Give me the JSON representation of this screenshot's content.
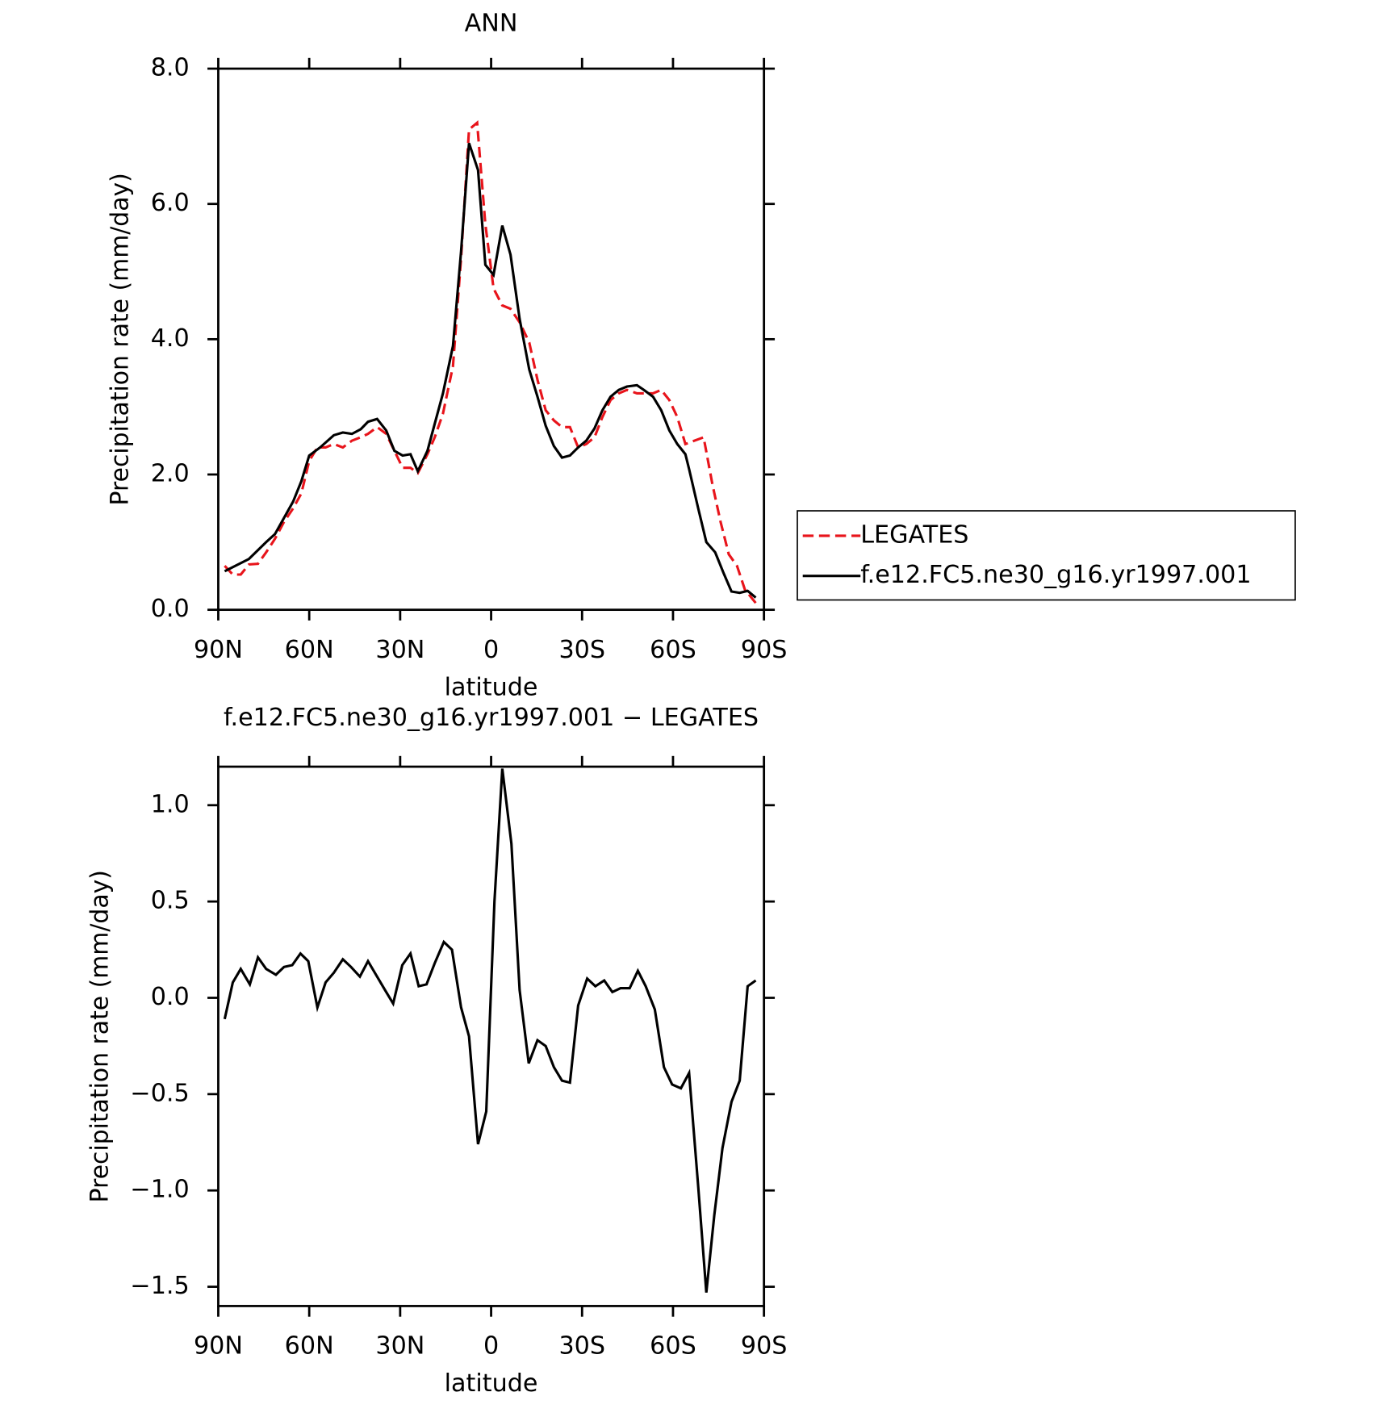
{
  "chart_data": [
    {
      "type": "line",
      "title": "ANN",
      "x_label": "latitude",
      "y_label": "Precipitation rate (mm/day)",
      "xlim": [
        90,
        -90
      ],
      "xticks": [
        {
          "value": 90,
          "label": "90N"
        },
        {
          "value": 60,
          "label": "60N"
        },
        {
          "value": 30,
          "label": "30N"
        },
        0,
        {
          "value": -30,
          "label": "30S"
        },
        {
          "value": -60,
          "label": "60S"
        },
        {
          "value": -90,
          "label": "90S"
        }
      ],
      "ylim": [
        0,
        8
      ],
      "yticks": [
        {
          "value": 0,
          "label": "0.0"
        },
        {
          "value": 2,
          "label": "2.0"
        },
        {
          "value": 4,
          "label": "4.0"
        },
        {
          "value": 6,
          "label": "6.0"
        },
        {
          "value": 8,
          "label": "8.0"
        }
      ],
      "legend": "right",
      "series": [
        {
          "name": "LEGATES",
          "color": "#e8141b",
          "style": "dashed",
          "x": [
            87.9,
            85.2,
            82.6,
            79.9,
            76.9,
            74.2,
            71.3,
            68.3,
            65.3,
            62.6,
            60.0,
            57.3,
            54.6,
            51.9,
            48.9,
            45.9,
            43.0,
            40.6,
            37.6,
            34.6,
            31.9,
            29.2,
            26.6,
            24.2,
            21.0,
            18.6,
            15.9,
            12.6,
            9.9,
            7.3,
            4.6,
            1.9,
            -0.8,
            -3.7,
            -6.4,
            -9.4,
            -12.6,
            -15.3,
            -18.0,
            -20.7,
            -23.4,
            -26.0,
            -28.7,
            -31.4,
            -34.1,
            -36.7,
            -39.4,
            -42.1,
            -44.8,
            -48.1,
            -50.4,
            -53.4,
            -56.1,
            -58.8,
            -61.4,
            -64.1,
            -67.1,
            -70.1,
            -73.0,
            -75.7,
            -78.4,
            -81.1,
            -83.7,
            -87.3
          ],
          "values": [
            0.65,
            0.52,
            0.52,
            0.67,
            0.68,
            0.85,
            1.05,
            1.3,
            1.5,
            1.72,
            2.2,
            2.4,
            2.4,
            2.45,
            2.4,
            2.5,
            2.55,
            2.6,
            2.7,
            2.6,
            2.35,
            2.1,
            2.1,
            2.02,
            2.3,
            2.55,
            2.9,
            3.6,
            5.2,
            7.1,
            7.2,
            5.7,
            4.75,
            4.5,
            4.45,
            4.25,
            3.95,
            3.4,
            2.95,
            2.8,
            2.7,
            2.7,
            2.4,
            2.45,
            2.55,
            2.85,
            3.1,
            3.2,
            3.25,
            3.2,
            3.2,
            3.2,
            3.25,
            3.1,
            2.85,
            2.45,
            2.5,
            2.55,
            1.85,
            1.3,
            0.82,
            0.65,
            0.3,
            0.1
          ]
        },
        {
          "name": "f.e12.FC5.ne30_g16.yr1997.001",
          "color": "#000000",
          "style": "solid",
          "x": [
            87.9,
            79.9,
            74.2,
            71.3,
            65.3,
            62.6,
            60.0,
            56.4,
            51.9,
            48.9,
            45.9,
            43.0,
            40.6,
            37.6,
            34.6,
            31.9,
            29.2,
            26.6,
            24.2,
            21.0,
            18.6,
            15.9,
            12.6,
            9.9,
            7.3,
            4.3,
            1.9,
            -0.8,
            -3.7,
            -6.4,
            -9.4,
            -12.6,
            -15.3,
            -18.0,
            -20.7,
            -23.4,
            -26.0,
            -28.7,
            -31.4,
            -34.1,
            -36.7,
            -39.4,
            -42.1,
            -44.8,
            -48.1,
            -50.4,
            -53.4,
            -56.1,
            -58.8,
            -61.4,
            -64.1,
            -65.3,
            -68.3,
            -71.0,
            -73.9,
            -76.6,
            -79.3,
            -82.0,
            -84.6,
            -87.3
          ],
          "values": [
            0.57,
            0.75,
            1.0,
            1.12,
            1.6,
            1.9,
            2.28,
            2.4,
            2.58,
            2.62,
            2.6,
            2.67,
            2.78,
            2.82,
            2.65,
            2.35,
            2.28,
            2.3,
            2.05,
            2.35,
            2.75,
            3.2,
            3.9,
            5.3,
            6.9,
            6.5,
            5.1,
            4.95,
            5.68,
            5.25,
            4.3,
            3.55,
            3.15,
            2.72,
            2.42,
            2.25,
            2.28,
            2.4,
            2.5,
            2.68,
            2.95,
            3.15,
            3.25,
            3.3,
            3.32,
            3.25,
            3.15,
            2.95,
            2.65,
            2.45,
            2.3,
            2.08,
            1.5,
            1.0,
            0.85,
            0.55,
            0.27,
            0.25,
            0.28,
            0.18
          ]
        }
      ]
    },
    {
      "type": "line",
      "title": "f.e12.FC5.ne30_g16.yr1997.001 − LEGATES",
      "x_label": "latitude",
      "y_label": "Precipitation rate (mm/day)",
      "xlim": [
        90,
        -90
      ],
      "xticks": [
        {
          "value": 90,
          "label": "90N"
        },
        {
          "value": 60,
          "label": "60N"
        },
        {
          "value": 30,
          "label": "30N"
        },
        0,
        {
          "value": -30,
          "label": "30S"
        },
        {
          "value": -60,
          "label": "60S"
        },
        {
          "value": -90,
          "label": "90S"
        }
      ],
      "ylim": [
        -1.6,
        1.2
      ],
      "yticks": [
        {
          "value": -1.5,
          "label": "−1.5"
        },
        {
          "value": -1,
          "label": "−1.0"
        },
        {
          "value": -0.5,
          "label": "−0.5"
        },
        {
          "value": 0,
          "label": "0.0"
        },
        0.5,
        {
          "value": 1,
          "label": "1.0"
        }
      ],
      "series": [
        {
          "color": "#000000",
          "style": "solid",
          "x": [
            87.9,
            85.2,
            82.6,
            79.6,
            76.9,
            74.2,
            71.0,
            68.3,
            65.6,
            62.9,
            60.3,
            57.3,
            54.6,
            51.9,
            48.9,
            46.2,
            43.3,
            40.6,
            37.6,
            35.0,
            32.3,
            29.3,
            26.6,
            23.9,
            21.3,
            18.6,
            15.6,
            12.9,
            9.9,
            7.3,
            4.3,
            1.6,
            -1.1,
            -3.7,
            -6.7,
            -9.4,
            -12.4,
            -15.3,
            -18.0,
            -20.7,
            -23.4,
            -26.0,
            -28.7,
            -31.7,
            -34.4,
            -37.3,
            -40.0,
            -42.7,
            -45.7,
            -48.4,
            -51.0,
            -54.0,
            -57.0,
            -59.7,
            -62.6,
            -65.3,
            -68.3,
            -71.0,
            -73.6,
            -76.3,
            -79.3,
            -82.0,
            -84.6,
            -87.3
          ],
          "values": [
            -0.11,
            0.08,
            0.15,
            0.07,
            0.21,
            0.15,
            0.12,
            0.16,
            0.17,
            0.23,
            0.19,
            -0.05,
            0.08,
            0.13,
            0.2,
            0.16,
            0.11,
            0.19,
            0.11,
            0.04,
            -0.03,
            0.17,
            0.23,
            0.06,
            0.07,
            0.18,
            0.29,
            0.25,
            -0.05,
            -0.2,
            -0.76,
            -0.59,
            0.5,
            1.19,
            0.8,
            0.04,
            -0.34,
            -0.22,
            -0.25,
            -0.36,
            -0.43,
            -0.44,
            -0.04,
            0.1,
            0.06,
            0.09,
            0.03,
            0.05,
            0.05,
            0.14,
            0.06,
            -0.06,
            -0.36,
            -0.45,
            -0.47,
            -0.39,
            -0.98,
            -1.53,
            -1.13,
            -0.78,
            -0.54,
            -0.43,
            0.06,
            0.09
          ]
        }
      ]
    }
  ]
}
